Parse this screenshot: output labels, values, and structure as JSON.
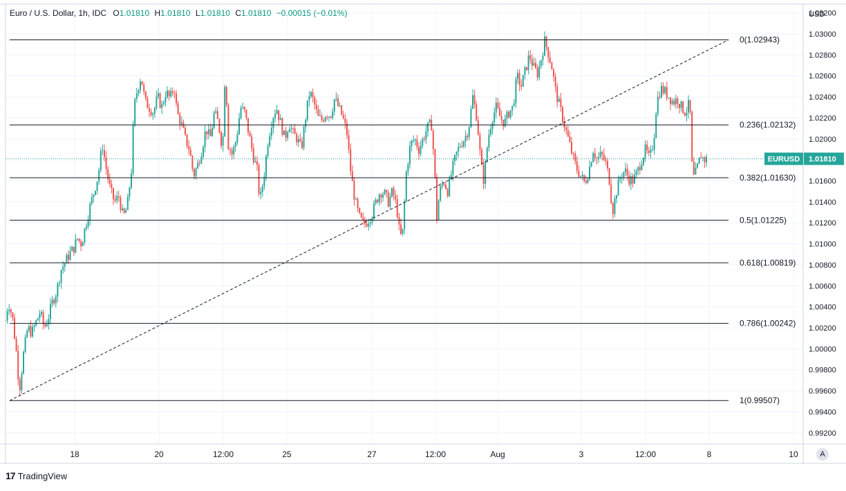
{
  "legend": {
    "symbol": "Euro / U.S. Dollar, 1h, IDC",
    "open_label": "O",
    "open": "1.01810",
    "high_label": "H",
    "high": "1.01810",
    "low_label": "L",
    "low": "1.01810",
    "close_label": "C",
    "close": "1.01810",
    "change": "−0.00015 (−0.01%)"
  },
  "branding": {
    "name": "TradingView",
    "logo_mark": "17"
  },
  "auto_scale_button": "A",
  "chart_data": {
    "type": "candlestick",
    "currency": "USD",
    "symbol_tag": "EURUSD",
    "last_price": "1.01810",
    "ylim": [
      0.991,
      1.0327
    ],
    "y_ticks": [
      "1.03200",
      "1.03000",
      "1.02800",
      "1.02600",
      "1.02400",
      "1.02200",
      "1.02000",
      "1.01800",
      "1.01600",
      "1.01400",
      "1.01200",
      "1.01000",
      "1.00800",
      "1.00600",
      "1.00400",
      "1.00200",
      "1.00000",
      "0.99800",
      "0.99600",
      "0.99400",
      "0.99200"
    ],
    "x_range": [
      0,
      1130
    ],
    "x_ticks": [
      {
        "pos": 100,
        "label": "18"
      },
      {
        "pos": 222,
        "label": "20"
      },
      {
        "pos": 315,
        "label": "12:00"
      },
      {
        "pos": 407,
        "label": "25"
      },
      {
        "pos": 530,
        "label": "27"
      },
      {
        "pos": 622,
        "label": "12:00"
      },
      {
        "pos": 712,
        "label": "Aug"
      },
      {
        "pos": 833,
        "label": "3"
      },
      {
        "pos": 926,
        "label": "12:00"
      },
      {
        "pos": 1018,
        "label": "8"
      },
      {
        "pos": 1140,
        "label": "10"
      }
    ],
    "fib_levels": [
      {
        "label": "0(1.02943)",
        "value": 1.02943
      },
      {
        "label": "0.236(1.02132)",
        "value": 1.02132
      },
      {
        "label": "0.382(1.01630)",
        "value": 1.0163
      },
      {
        "label": "0.5(1.01225)",
        "value": 1.01225
      },
      {
        "label": "0.618(1.00819)",
        "value": 1.00819
      },
      {
        "label": "0.786(1.00242)",
        "value": 1.00242
      },
      {
        "label": "1(0.99507)",
        "value": 0.99507
      }
    ],
    "fib_x_start": 6,
    "fib_x_end": 1046,
    "trend_line": {
      "from": [
        6,
        0.99507
      ],
      "to": [
        1046,
        1.02943
      ]
    },
    "close_path": [
      [
        0,
        1.0027
      ],
      [
        4,
        1.0045
      ],
      [
        10,
        1.003
      ],
      [
        16,
        0.9995
      ],
      [
        20,
        0.996
      ],
      [
        26,
        0.9995
      ],
      [
        32,
        1.002
      ],
      [
        38,
        1.0015
      ],
      [
        44,
        1.0025
      ],
      [
        50,
        1.0035
      ],
      [
        56,
        1.002
      ],
      [
        62,
        1.003
      ],
      [
        68,
        1.0045
      ],
      [
        74,
        1.0055
      ],
      [
        80,
        1.0075
      ],
      [
        86,
        1.0082
      ],
      [
        92,
        1.009
      ],
      [
        98,
        1.0095
      ],
      [
        104,
        1.0105
      ],
      [
        110,
        1.01
      ],
      [
        116,
        1.0118
      ],
      [
        122,
        1.0135
      ],
      [
        128,
        1.015
      ],
      [
        134,
        1.0165
      ],
      [
        140,
        1.0195
      ],
      [
        146,
        1.017
      ],
      [
        152,
        1.015
      ],
      [
        158,
        1.014
      ],
      [
        164,
        1.0145
      ],
      [
        170,
        1.0125
      ],
      [
        176,
        1.0135
      ],
      [
        182,
        1.017
      ],
      [
        186,
        1.023
      ],
      [
        190,
        1.0245
      ],
      [
        196,
        1.026
      ],
      [
        202,
        1.0235
      ],
      [
        208,
        1.023
      ],
      [
        214,
        1.0225
      ],
      [
        220,
        1.024
      ],
      [
        226,
        1.023
      ],
      [
        232,
        1.0245
      ],
      [
        238,
        1.0238
      ],
      [
        244,
        1.025
      ],
      [
        248,
        1.0225
      ],
      [
        254,
        1.0215
      ],
      [
        260,
        1.02
      ],
      [
        266,
        1.019
      ],
      [
        272,
        1.0165
      ],
      [
        278,
        1.0175
      ],
      [
        284,
        1.019
      ],
      [
        290,
        1.021
      ],
      [
        296,
        1.02
      ],
      [
        302,
        1.0225
      ],
      [
        308,
        1.0215
      ],
      [
        314,
        1.019
      ],
      [
        318,
        1.027
      ],
      [
        322,
        1.0195
      ],
      [
        328,
        1.0185
      ],
      [
        334,
        1.02
      ],
      [
        340,
        1.023
      ],
      [
        346,
        1.0225
      ],
      [
        352,
        1.0205
      ],
      [
        358,
        1.0185
      ],
      [
        364,
        1.017
      ],
      [
        368,
        1.014
      ],
      [
        374,
        1.0165
      ],
      [
        380,
        1.02
      ],
      [
        386,
        1.022
      ],
      [
        392,
        1.023
      ],
      [
        398,
        1.0215
      ],
      [
        404,
        1.02
      ],
      [
        410,
        1.0215
      ],
      [
        416,
        1.0205
      ],
      [
        422,
        1.02
      ],
      [
        428,
        1.019
      ],
      [
        434,
        1.022
      ],
      [
        440,
        1.0245
      ],
      [
        446,
        1.0235
      ],
      [
        452,
        1.022
      ],
      [
        458,
        1.0218
      ],
      [
        464,
        1.0225
      ],
      [
        470,
        1.0222
      ],
      [
        476,
        1.0238
      ],
      [
        482,
        1.023
      ],
      [
        488,
        1.022
      ],
      [
        494,
        1.0205
      ],
      [
        500,
        1.0165
      ],
      [
        506,
        1.014
      ],
      [
        512,
        1.0125
      ],
      [
        518,
        1.0118
      ],
      [
        524,
        1.0122
      ],
      [
        530,
        1.0128
      ],
      [
        536,
        1.014
      ],
      [
        542,
        1.015
      ],
      [
        548,
        1.0148
      ],
      [
        554,
        1.014
      ],
      [
        560,
        1.015
      ],
      [
        566,
        1.0135
      ],
      [
        570,
        1.011
      ],
      [
        574,
        1.0105
      ],
      [
        580,
        1.017
      ],
      [
        586,
        1.0195
      ],
      [
        592,
        1.02
      ],
      [
        598,
        1.019
      ],
      [
        604,
        1.02
      ],
      [
        610,
        1.021
      ],
      [
        616,
        1.0215
      ],
      [
        620,
        1.018
      ],
      [
        624,
        1.0125
      ],
      [
        628,
        1.015
      ],
      [
        634,
        1.016
      ],
      [
        640,
        1.015
      ],
      [
        646,
        1.017
      ],
      [
        652,
        1.0185
      ],
      [
        658,
        1.0195
      ],
      [
        664,
        1.02
      ],
      [
        670,
        1.021
      ],
      [
        676,
        1.024
      ],
      [
        682,
        1.022
      ],
      [
        688,
        1.0175
      ],
      [
        692,
        1.016
      ],
      [
        698,
        1.02
      ],
      [
        704,
        1.022
      ],
      [
        710,
        1.023
      ],
      [
        716,
        1.022
      ],
      [
        722,
        1.0215
      ],
      [
        728,
        1.0225
      ],
      [
        734,
        1.023
      ],
      [
        740,
        1.026
      ],
      [
        746,
        1.025
      ],
      [
        752,
        1.0265
      ],
      [
        758,
        1.028
      ],
      [
        764,
        1.0268
      ],
      [
        770,
        1.0262
      ],
      [
        776,
        1.028
      ],
      [
        780,
        1.0293
      ],
      [
        784,
        1.0285
      ],
      [
        790,
        1.027
      ],
      [
        796,
        1.0245
      ],
      [
        802,
        1.023
      ],
      [
        808,
        1.0215
      ],
      [
        814,
        1.02
      ],
      [
        820,
        1.0185
      ],
      [
        826,
        1.0172
      ],
      [
        832,
        1.0165
      ],
      [
        838,
        1.0158
      ],
      [
        844,
        1.017
      ],
      [
        850,
        1.019
      ],
      [
        856,
        1.018
      ],
      [
        862,
        1.0185
      ],
      [
        868,
        1.0178
      ],
      [
        874,
        1.016
      ],
      [
        878,
        1.013
      ],
      [
        884,
        1.015
      ],
      [
        890,
        1.0165
      ],
      [
        896,
        1.017
      ],
      [
        902,
        1.0162
      ],
      [
        908,
        1.016
      ],
      [
        914,
        1.0168
      ],
      [
        920,
        1.018
      ],
      [
        926,
        1.019
      ],
      [
        932,
        1.018
      ],
      [
        938,
        1.02
      ],
      [
        942,
        1.0235
      ],
      [
        948,
        1.0248
      ],
      [
        954,
        1.0245
      ],
      [
        960,
        1.024
      ],
      [
        966,
        1.0235
      ],
      [
        972,
        1.0238
      ],
      [
        978,
        1.023
      ],
      [
        984,
        1.0225
      ],
      [
        990,
        1.0235
      ],
      [
        994,
        1.016
      ],
      [
        1000,
        1.017
      ],
      [
        1006,
        1.0185
      ],
      [
        1010,
        1.018
      ],
      [
        1016,
        1.0181
      ]
    ],
    "hourly_seed": 7
  }
}
